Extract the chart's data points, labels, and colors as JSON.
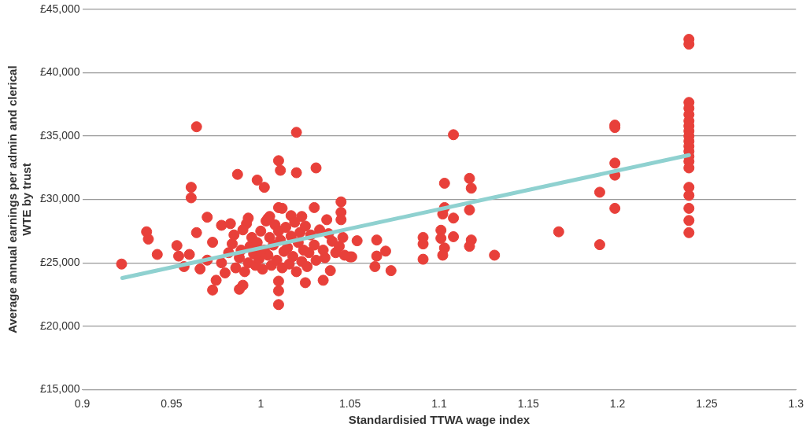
{
  "chart_data": {
    "type": "scatter",
    "xlabel": "Standardisied TTWA wage index",
    "ylabel": "Average annual earnings per admin and clerical WTE by trust",
    "xlim": [
      0.9,
      1.3
    ],
    "xticks": [
      0.9,
      0.95,
      1,
      1.05,
      1.1,
      1.15,
      1.2,
      1.25,
      1.3
    ],
    "ylim": [
      15000,
      45000
    ],
    "yticks": [
      {
        "value": 15000,
        "label": "£15,000"
      },
      {
        "value": 20000,
        "label": "£20,000"
      },
      {
        "value": 25000,
        "label": "£25,000"
      },
      {
        "value": 30000,
        "label": "£30,000"
      },
      {
        "value": 35000,
        "label": "£35,000"
      },
      {
        "value": 40000,
        "label": "£40,000"
      },
      {
        "value": 45000,
        "label": "£45,000"
      }
    ],
    "grid": "y",
    "legend": false,
    "series": [
      {
        "marker": "circle",
        "color": "#e8403a",
        "x": [
          0.922,
          0.936,
          0.937,
          0.942,
          0.961,
          0.961,
          0.964,
          0.964,
          0.97,
          0.953,
          0.954,
          0.957,
          0.966,
          0.973,
          0.978,
          0.983,
          0.993,
          0.973,
          0.975,
          0.988,
          0.99,
          0.992,
          0.97,
          0.96,
          0.987,
          0.998,
          1.002,
          1.01,
          1.011,
          1.02,
          1.02,
          1.031,
          1.01,
          1.03,
          1.045,
          1.045,
          1.045,
          1.005,
          1.017,
          1.023,
          1.037,
          1.054,
          1.065,
          1.065,
          1.064,
          1.051,
          1.039,
          1.035,
          1.01,
          1.01,
          1.01,
          1.025,
          1.108,
          1.103,
          1.117,
          1.118,
          1.103,
          1.102,
          1.108,
          1.117,
          1.101,
          1.101,
          1.103,
          1.102,
          1.108,
          1.118,
          1.117,
          1.131,
          1.091,
          1.091,
          1.091,
          1.07,
          1.073,
          1.05,
          1.24,
          1.24,
          1.24,
          1.24,
          1.24,
          1.24,
          1.24,
          1.24,
          1.24,
          1.24,
          1.24,
          1.24,
          1.24,
          1.24,
          1.24,
          1.24,
          1.24,
          1.24,
          1.24,
          1.24,
          1.1985,
          1.1985,
          1.1985,
          1.1985,
          1.1985,
          1.19,
          1.19,
          1.167,
          0.978,
          0.98,
          0.982,
          0.984,
          0.985,
          0.986,
          0.988,
          0.989,
          0.99,
          0.991,
          0.993,
          0.994,
          0.995,
          0.996,
          0.997,
          0.998,
          0.999,
          1.0,
          1.001,
          1.002,
          1.003,
          1.004,
          1.005,
          1.006,
          1.007,
          1.008,
          1.009,
          1.01,
          1.011,
          1.012,
          1.013,
          1.014,
          1.015,
          1.016,
          1.017,
          1.018,
          1.019,
          1.02,
          1.021,
          1.022,
          1.023,
          1.024,
          1.025,
          1.026,
          1.027,
          1.028,
          1.03,
          1.031,
          1.033,
          1.035,
          1.036,
          1.038,
          1.04,
          1.042,
          1.044,
          1.046,
          1.047,
          1.012,
          1.004,
          1.0
        ],
        "values": [
          24900,
          27450,
          26870,
          25660,
          30960,
          30130,
          35740,
          27380,
          28600,
          26360,
          25530,
          24700,
          24510,
          26620,
          27960,
          28090,
          28530,
          22850,
          23620,
          22910,
          23230,
          28090,
          25210,
          25660,
          31980,
          31530,
          30960,
          33060,
          32300,
          35300,
          32110,
          32490,
          29360,
          29360,
          29810,
          28980,
          28400,
          28660,
          28720,
          28660,
          28400,
          26740,
          26800,
          25530,
          24700,
          25470,
          24380,
          23620,
          23550,
          22790,
          21700,
          23430,
          35110,
          31280,
          31660,
          30890,
          29360,
          28850,
          28530,
          29170,
          27570,
          26930,
          26170,
          25600,
          27060,
          26800,
          26300,
          25600,
          27000,
          26490,
          25280,
          25920,
          24380,
          25470,
          42640,
          42260,
          37660,
          37200,
          36700,
          36200,
          35800,
          35400,
          35000,
          34600,
          34200,
          33800,
          33400,
          33000,
          32490,
          30960,
          30320,
          29300,
          28340,
          27380,
          35870,
          35680,
          32870,
          31920,
          29300,
          30570,
          26430,
          27450,
          25000,
          24200,
          25800,
          26500,
          27200,
          24600,
          25400,
          26000,
          27600,
          24300,
          25000,
          26300,
          27000,
          25700,
          24800,
          26600,
          25300,
          27500,
          24500,
          26000,
          28300,
          25600,
          27000,
          24800,
          26400,
          28000,
          25200,
          27500,
          26800,
          24600,
          25900,
          27800,
          26200,
          24900,
          27100,
          25500,
          28200,
          24300,
          26600,
          27400,
          25100,
          26000,
          27900,
          24700,
          25800,
          27200,
          26400,
          25200,
          27600,
          26000,
          25400,
          27300,
          26700,
          25800,
          26300,
          27000,
          25600,
          29300,
          28500,
          25900
        ]
      },
      {
        "type": "line",
        "marker": "none",
        "color": "#8fd1d0",
        "x": [
          0.9224,
          1.24
        ],
        "values": [
          23800,
          33500
        ]
      }
    ]
  }
}
